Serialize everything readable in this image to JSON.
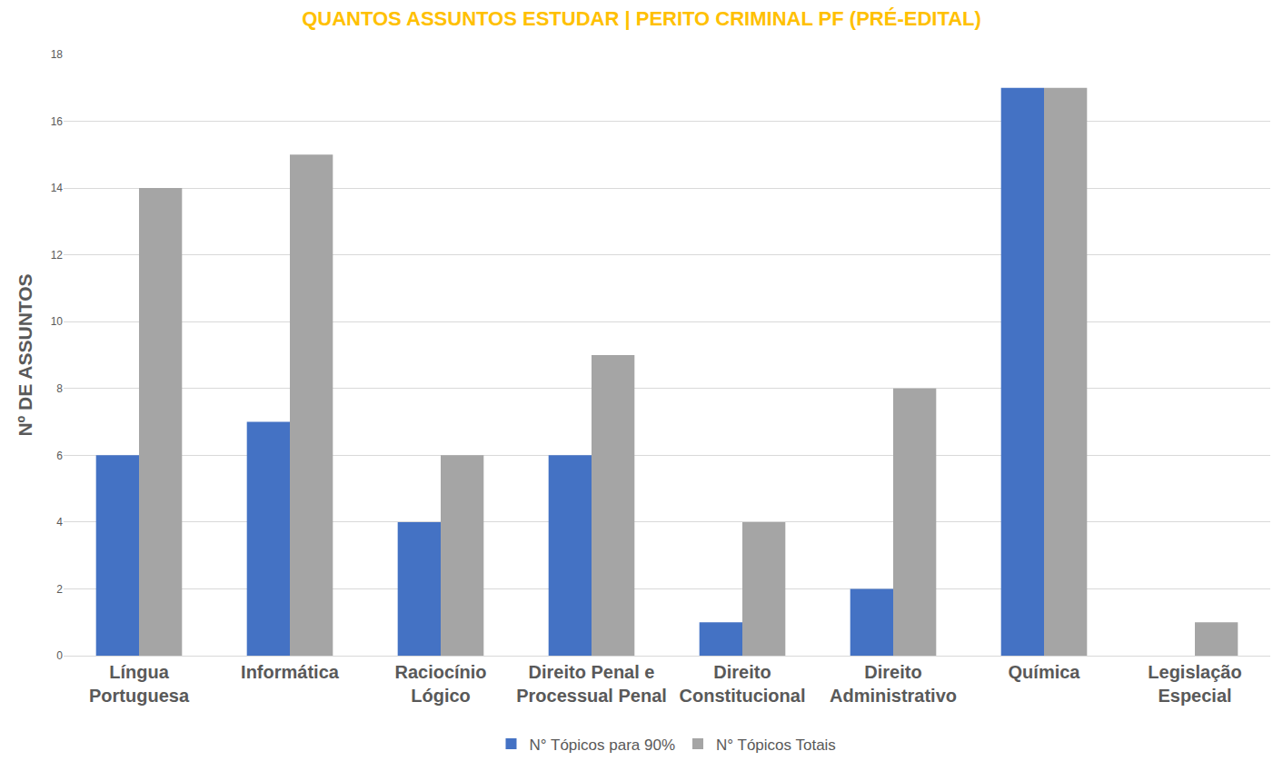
{
  "chart_data": {
    "type": "bar",
    "title": "QUANTOS ASSUNTOS ESTUDAR | PERITO CRIMINAL PF (PRÉ-EDITAL)",
    "y_label": "Nº DE ASSUNTOS",
    "categories": [
      "Língua Portuguesa",
      "Informática",
      "Raciocínio Lógico",
      "Direito Penal e Processual Penal",
      "Direito Constitucional",
      "Direito Administrativo",
      "Química",
      "Legislação Especial"
    ],
    "series": [
      {
        "name": "N° Tópicos para 90%",
        "color": "#4472C4",
        "values": [
          6,
          7,
          4,
          6,
          1,
          2,
          17,
          0
        ]
      },
      {
        "name": "N° Tópicos Totais",
        "color": "#A5A5A5",
        "values": [
          14,
          15,
          6,
          9,
          4,
          8,
          17,
          1
        ]
      }
    ],
    "ylim": [
      0,
      18
    ],
    "yticks": [
      0,
      2,
      4,
      6,
      8,
      10,
      12,
      14,
      16,
      18
    ],
    "grid": true,
    "legend": "bottom"
  }
}
